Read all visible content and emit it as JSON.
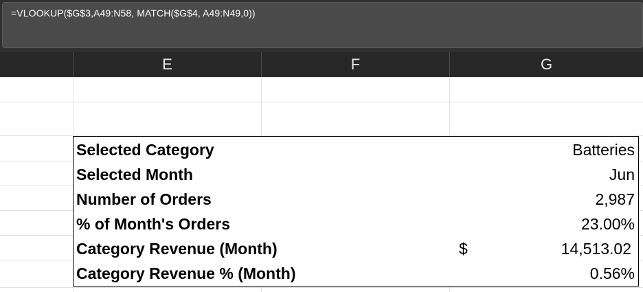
{
  "formula_bar": {
    "formula": "=VLOOKUP($G$3,A49:N58, MATCH($G$4, A49:N49,0))"
  },
  "columns": [
    "E",
    "F",
    "G"
  ],
  "summary": {
    "rows": [
      {
        "label": "Selected Category",
        "value": "Batteries"
      },
      {
        "label": "Selected Month",
        "value": "Jun"
      },
      {
        "label": "Number of Orders",
        "value": "2,987"
      },
      {
        "label": "% of Month's Orders",
        "value": "23.00%"
      },
      {
        "label": "Category Revenue (Month)",
        "currency": "$",
        "value": "14,513.02"
      },
      {
        "label": "Category Revenue % (Month)",
        "value": "0.56%"
      }
    ]
  }
}
